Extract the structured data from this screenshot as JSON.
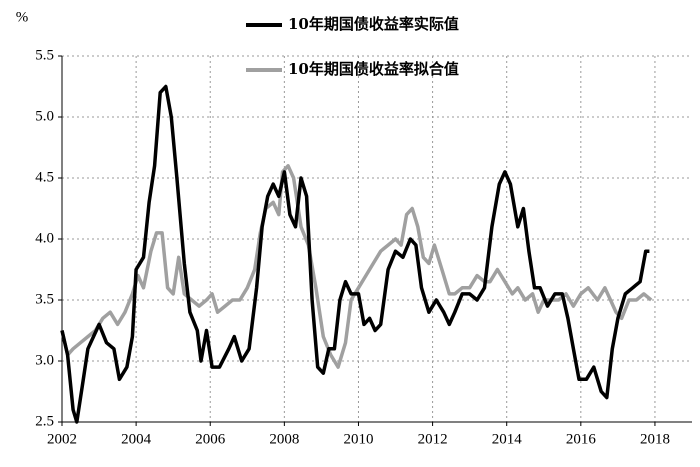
{
  "chart_data": {
    "type": "line",
    "y_label": "%",
    "xlim": [
      2002,
      2019
    ],
    "xticks": [
      2002,
      2004,
      2006,
      2008,
      2010,
      2012,
      2014,
      2016,
      2018
    ],
    "ylim": [
      2.5,
      5.5
    ],
    "yticks": [
      2.5,
      {
        "value": 3,
        "label": "3.0"
      },
      3.5,
      {
        "value": 4,
        "label": "4.0"
      },
      4.5,
      {
        "value": 5,
        "label": "5.0"
      },
      5.5
    ],
    "grid": true,
    "series": [
      {
        "name": "10年期国债收益率实际值",
        "color": "#000000",
        "x": [
          2002.0,
          2002.15,
          2002.3,
          2002.4,
          2002.55,
          2002.7,
          2002.85,
          2003.0,
          2003.2,
          2003.4,
          2003.55,
          2003.75,
          2003.9,
          2004.0,
          2004.2,
          2004.35,
          2004.5,
          2004.65,
          2004.8,
          2004.95,
          2005.1,
          2005.3,
          2005.45,
          2005.65,
          2005.75,
          2005.9,
          2006.05,
          2006.25,
          2006.5,
          2006.65,
          2006.85,
          2007.05,
          2007.25,
          2007.4,
          2007.55,
          2007.7,
          2007.85,
          2008.0,
          2008.15,
          2008.3,
          2008.45,
          2008.6,
          2008.75,
          2008.9,
          2009.05,
          2009.2,
          2009.35,
          2009.5,
          2009.65,
          2009.8,
          2010.0,
          2010.15,
          2010.3,
          2010.45,
          2010.6,
          2010.8,
          2011.0,
          2011.2,
          2011.4,
          2011.55,
          2011.7,
          2011.9,
          2012.1,
          2012.3,
          2012.45,
          2012.6,
          2012.8,
          2013.0,
          2013.2,
          2013.4,
          2013.6,
          2013.8,
          2013.95,
          2014.1,
          2014.3,
          2014.45,
          2014.6,
          2014.75,
          2014.9,
          2015.1,
          2015.3,
          2015.5,
          2015.65,
          2015.8,
          2015.95,
          2016.15,
          2016.35,
          2016.55,
          2016.7,
          2016.85,
          2017.0,
          2017.2,
          2017.4,
          2017.6,
          2017.75,
          2017.85
        ],
        "values": [
          3.25,
          3.05,
          2.6,
          2.5,
          2.8,
          3.1,
          3.2,
          3.3,
          3.15,
          3.1,
          2.85,
          2.95,
          3.2,
          3.75,
          3.85,
          4.3,
          4.6,
          5.2,
          5.25,
          5.0,
          4.5,
          3.8,
          3.4,
          3.25,
          3.0,
          3.25,
          2.95,
          2.95,
          3.1,
          3.2,
          3.0,
          3.1,
          3.6,
          4.1,
          4.35,
          4.45,
          4.35,
          4.55,
          4.2,
          4.1,
          4.5,
          4.35,
          3.5,
          2.95,
          2.9,
          3.1,
          3.1,
          3.5,
          3.65,
          3.55,
          3.55,
          3.3,
          3.35,
          3.25,
          3.3,
          3.75,
          3.9,
          3.85,
          4.0,
          3.95,
          3.6,
          3.4,
          3.5,
          3.4,
          3.3,
          3.4,
          3.55,
          3.55,
          3.5,
          3.6,
          4.1,
          4.45,
          4.55,
          4.45,
          4.1,
          4.25,
          3.9,
          3.6,
          3.6,
          3.45,
          3.55,
          3.55,
          3.35,
          3.1,
          2.85,
          2.85,
          2.95,
          2.75,
          2.7,
          3.1,
          3.35,
          3.55,
          3.6,
          3.65,
          3.9,
          3.9
        ]
      },
      {
        "name": "10年期国债收益率拟合值",
        "color": "#a0a0a0",
        "x": [
          2002.0,
          2002.15,
          2002.3,
          2002.5,
          2002.7,
          2002.9,
          2003.1,
          2003.3,
          2003.5,
          2003.7,
          2003.9,
          2004.05,
          2004.2,
          2004.4,
          2004.55,
          2004.7,
          2004.85,
          2005.0,
          2005.15,
          2005.3,
          2005.5,
          2005.7,
          2005.9,
          2006.05,
          2006.2,
          2006.4,
          2006.6,
          2006.8,
          2007.0,
          2007.2,
          2007.35,
          2007.5,
          2007.7,
          2007.85,
          2007.95,
          2008.1,
          2008.25,
          2008.45,
          2008.65,
          2008.85,
          2009.05,
          2009.25,
          2009.45,
          2009.65,
          2009.8,
          2010.0,
          2010.2,
          2010.4,
          2010.6,
          2010.8,
          2011.0,
          2011.15,
          2011.3,
          2011.45,
          2011.6,
          2011.75,
          2011.9,
          2012.05,
          2012.25,
          2012.45,
          2012.6,
          2012.8,
          2013.0,
          2013.2,
          2013.4,
          2013.55,
          2013.75,
          2013.95,
          2014.15,
          2014.3,
          2014.5,
          2014.7,
          2014.85,
          2015.0,
          2015.2,
          2015.4,
          2015.6,
          2015.8,
          2016.0,
          2016.2,
          2016.45,
          2016.65,
          2016.8,
          2016.95,
          2017.1,
          2017.3,
          2017.5,
          2017.7,
          2017.9
        ],
        "values": [
          3.25,
          3.05,
          3.1,
          3.15,
          3.2,
          3.25,
          3.35,
          3.4,
          3.3,
          3.4,
          3.55,
          3.7,
          3.6,
          3.9,
          4.05,
          4.05,
          3.6,
          3.55,
          3.85,
          3.55,
          3.5,
          3.45,
          3.5,
          3.55,
          3.4,
          3.45,
          3.5,
          3.5,
          3.6,
          3.75,
          4.05,
          4.25,
          4.3,
          4.2,
          4.55,
          4.6,
          4.5,
          4.1,
          3.95,
          3.6,
          3.2,
          3.05,
          2.95,
          3.15,
          3.5,
          3.6,
          3.7,
          3.8,
          3.9,
          3.95,
          4.0,
          3.95,
          4.2,
          4.25,
          4.1,
          3.85,
          3.8,
          3.95,
          3.75,
          3.55,
          3.55,
          3.6,
          3.6,
          3.7,
          3.65,
          3.65,
          3.75,
          3.65,
          3.55,
          3.6,
          3.5,
          3.55,
          3.4,
          3.5,
          3.5,
          3.5,
          3.55,
          3.45,
          3.55,
          3.6,
          3.5,
          3.6,
          3.5,
          3.4,
          3.35,
          3.5,
          3.5,
          3.55,
          3.5
        ]
      }
    ]
  }
}
